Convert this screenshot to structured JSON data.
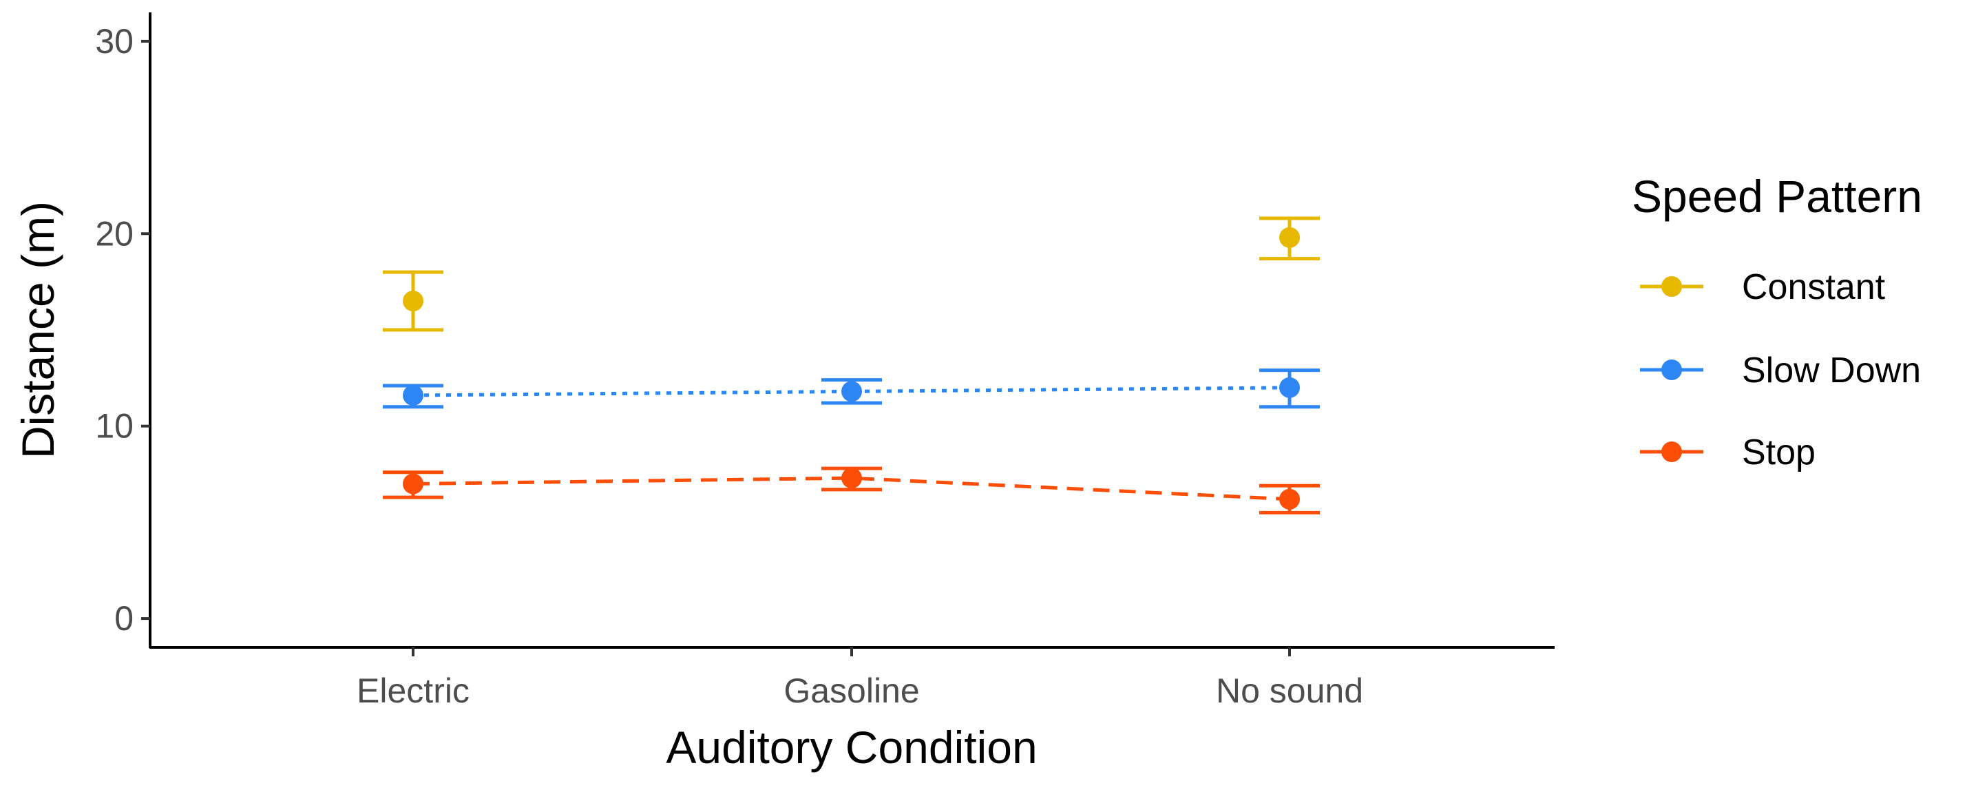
{
  "chart_data": {
    "type": "line",
    "title": "",
    "xlabel": "Auditory Condition",
    "ylabel": "Distance (m)",
    "categories": [
      "Electric",
      "Gasoline",
      "No sound"
    ],
    "yticks": [
      "0",
      "10",
      "20",
      "30"
    ],
    "ylim": [
      -1.5,
      31.5
    ],
    "legend": {
      "title": "Speed Pattern",
      "position": "right"
    },
    "series": [
      {
        "name": "Constant",
        "color": "#E7B800",
        "line_style": "none",
        "values": [
          16.5,
          null,
          19.8
        ],
        "error_low": [
          15.0,
          null,
          18.7
        ],
        "error_high": [
          18.0,
          null,
          20.8
        ]
      },
      {
        "name": "Slow Down",
        "color": "#2E86F5",
        "line_style": "dotted",
        "values": [
          11.6,
          11.8,
          12.0
        ],
        "error_low": [
          11.0,
          11.2,
          11.0
        ],
        "error_high": [
          12.1,
          12.4,
          12.9
        ]
      },
      {
        "name": "Stop",
        "color": "#FC4E07",
        "line_style": "dashed",
        "values": [
          7.0,
          7.3,
          6.2
        ],
        "error_low": [
          6.3,
          6.7,
          5.5
        ],
        "error_high": [
          7.6,
          7.8,
          6.9
        ]
      }
    ]
  }
}
